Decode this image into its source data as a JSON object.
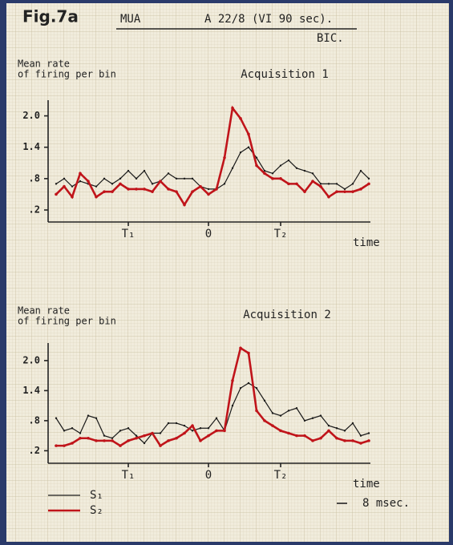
{
  "header": {
    "figure": "Fig.7a",
    "label": "MUA",
    "experiment": "A 22/8 (VI 90 sec).",
    "condition": "BIC."
  },
  "chart_data": [
    {
      "type": "line",
      "title": "Acquisition 1",
      "ylabel": [
        "Mean rate",
        "of firing per bin"
      ],
      "xlabel": "time",
      "x": [
        -19,
        -18,
        -17,
        -16,
        -15,
        -14,
        -13,
        -12,
        -11,
        -10,
        -9,
        -8,
        -7,
        -6,
        -5,
        -4,
        -3,
        -2,
        -1,
        0,
        1,
        2,
        3,
        4,
        5,
        6,
        7,
        8,
        9,
        10,
        11,
        12,
        13,
        14,
        15,
        16,
        17,
        18,
        19,
        20
      ],
      "xlim": [
        -20,
        20.2
      ],
      "xticks": [
        {
          "value": -10,
          "label": "T₁"
        },
        0,
        {
          "value": 9,
          "label": "T₂"
        }
      ],
      "ylim": [
        -0.03,
        2.3
      ],
      "yticks": [
        {
          "value": 0.2,
          "label": ".2"
        },
        {
          "value": 0.8,
          "label": ".8"
        },
        1.4,
        {
          "value": 2,
          "label": "2.0"
        }
      ],
      "series": [
        {
          "color": "#1a1a1a",
          "values": [
            0.7,
            0.8,
            0.65,
            0.75,
            0.7,
            0.65,
            0.8,
            0.7,
            0.8,
            0.95,
            0.8,
            0.95,
            0.7,
            0.75,
            0.9,
            0.8,
            0.8,
            0.8,
            0.65,
            0.6,
            0.6,
            0.7,
            1.0,
            1.3,
            1.4,
            1.2,
            0.95,
            0.9,
            1.05,
            1.15,
            1.0,
            0.95,
            0.9,
            0.7,
            0.7,
            0.7,
            0.6,
            0.7,
            0.95,
            0.8
          ]
        },
        {
          "color": "#c0141a",
          "values": [
            0.5,
            0.65,
            0.45,
            0.9,
            0.75,
            0.45,
            0.55,
            0.55,
            0.7,
            0.6,
            0.6,
            0.6,
            0.55,
            0.75,
            0.6,
            0.55,
            0.3,
            0.55,
            0.65,
            0.5,
            0.6,
            1.2,
            2.15,
            1.95,
            1.65,
            1.05,
            0.9,
            0.8,
            0.8,
            0.7,
            0.7,
            0.55,
            0.75,
            0.65,
            0.45,
            0.55,
            0.55,
            0.55,
            0.6,
            0.7
          ]
        }
      ]
    },
    {
      "type": "line",
      "title": "Acquisition 2",
      "ylabel": [
        "Mean rate",
        "of firing per bin"
      ],
      "xlabel": "time",
      "x": [
        -19,
        -18,
        -17,
        -16,
        -15,
        -14,
        -13,
        -12,
        -11,
        -10,
        -9,
        -8,
        -7,
        -6,
        -5,
        -4,
        -3,
        -2,
        -1,
        0,
        1,
        2,
        3,
        4,
        5,
        6,
        7,
        8,
        9,
        10,
        11,
        12,
        13,
        14,
        15,
        16,
        17,
        18,
        19,
        20
      ],
      "xlim": [
        -20,
        20.2
      ],
      "xticks": [
        {
          "value": -10,
          "label": "T₁"
        },
        0,
        {
          "value": 9,
          "label": "T₂"
        }
      ],
      "ylim": [
        -0.05,
        2.35
      ],
      "yticks": [
        {
          "value": 0.2,
          "label": ".2"
        },
        {
          "value": 0.8,
          "label": ".8"
        },
        1.4,
        {
          "value": 2,
          "label": "2.0"
        }
      ],
      "series": [
        {
          "name": "S₁",
          "color": "#1a1a1a",
          "values": [
            0.85,
            0.6,
            0.65,
            0.55,
            0.9,
            0.85,
            0.5,
            0.45,
            0.6,
            0.65,
            0.5,
            0.35,
            0.55,
            0.55,
            0.75,
            0.75,
            0.7,
            0.6,
            0.65,
            0.65,
            0.85,
            0.6,
            1.1,
            1.45,
            1.55,
            1.45,
            1.2,
            0.95,
            0.9,
            1.0,
            1.05,
            0.8,
            0.85,
            0.9,
            0.7,
            0.65,
            0.6,
            0.75,
            0.5,
            0.55
          ]
        },
        {
          "name": "S₂",
          "color": "#c0141a",
          "values": [
            0.3,
            0.3,
            0.35,
            0.45,
            0.45,
            0.4,
            0.4,
            0.4,
            0.3,
            0.4,
            0.45,
            0.5,
            0.55,
            0.3,
            0.4,
            0.45,
            0.55,
            0.7,
            0.4,
            0.5,
            0.6,
            0.6,
            1.6,
            2.25,
            2.15,
            1.0,
            0.8,
            0.7,
            0.6,
            0.55,
            0.5,
            0.5,
            0.4,
            0.45,
            0.6,
            0.45,
            0.4,
            0.4,
            0.35,
            0.4
          ]
        }
      ],
      "scale_bar": "8 msec."
    }
  ]
}
